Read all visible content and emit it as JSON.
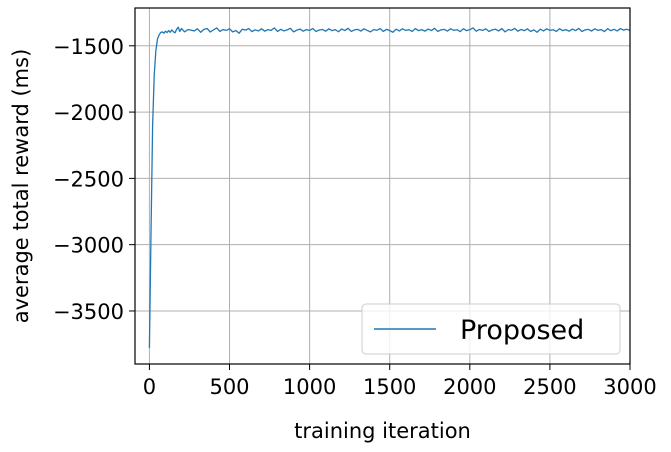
{
  "chart_data": {
    "type": "line",
    "xlabel": "training iteration",
    "ylabel": "average total reward (ms)",
    "xlim": [
      -90,
      3000
    ],
    "ylim": [
      -3900,
      -1215
    ],
    "xticks": [
      0,
      500,
      1000,
      1500,
      2000,
      2500,
      3000
    ],
    "yticks": [
      -3500,
      -3000,
      -2500,
      -2000,
      -1500
    ],
    "xtick_labels": [
      "0",
      "500",
      "1000",
      "1500",
      "2000",
      "2500",
      "3000"
    ],
    "ytick_labels": [
      "−3500",
      "−3000",
      "−2500",
      "−2000",
      "−1500"
    ],
    "grid": true,
    "legend_position": "lower right",
    "series": [
      {
        "name": "Proposed",
        "color": "#1f77b4",
        "points": [
          [
            0,
            -3780
          ],
          [
            10,
            -2900
          ],
          [
            20,
            -2100
          ],
          [
            30,
            -1720
          ],
          [
            40,
            -1540
          ],
          [
            50,
            -1450
          ],
          [
            60,
            -1420
          ],
          [
            70,
            -1400
          ],
          [
            80,
            -1395
          ],
          [
            90,
            -1405
          ],
          [
            100,
            -1390
          ],
          [
            110,
            -1400
          ],
          [
            120,
            -1385
          ],
          [
            130,
            -1398
          ],
          [
            140,
            -1380
          ],
          [
            150,
            -1395
          ],
          [
            160,
            -1402
          ],
          [
            170,
            -1375
          ],
          [
            180,
            -1360
          ],
          [
            190,
            -1392
          ],
          [
            200,
            -1370
          ],
          [
            220,
            -1395
          ],
          [
            240,
            -1378
          ],
          [
            260,
            -1382
          ],
          [
            280,
            -1388
          ],
          [
            300,
            -1372
          ],
          [
            320,
            -1398
          ],
          [
            340,
            -1376
          ],
          [
            360,
            -1370
          ],
          [
            380,
            -1396
          ],
          [
            400,
            -1380
          ],
          [
            420,
            -1365
          ],
          [
            440,
            -1392
          ],
          [
            460,
            -1378
          ],
          [
            480,
            -1384
          ],
          [
            500,
            -1372
          ],
          [
            520,
            -1395
          ],
          [
            540,
            -1385
          ],
          [
            560,
            -1405
          ],
          [
            580,
            -1375
          ],
          [
            600,
            -1382
          ],
          [
            620,
            -1370
          ],
          [
            640,
            -1393
          ],
          [
            660,
            -1380
          ],
          [
            680,
            -1388
          ],
          [
            700,
            -1372
          ],
          [
            720,
            -1390
          ],
          [
            740,
            -1378
          ],
          [
            760,
            -1384
          ],
          [
            780,
            -1365
          ],
          [
            800,
            -1392
          ],
          [
            820,
            -1376
          ],
          [
            840,
            -1388
          ],
          [
            860,
            -1380
          ],
          [
            880,
            -1368
          ],
          [
            900,
            -1395
          ],
          [
            920,
            -1382
          ],
          [
            940,
            -1374
          ],
          [
            960,
            -1390
          ],
          [
            980,
            -1378
          ],
          [
            1000,
            -1384
          ],
          [
            1020,
            -1370
          ],
          [
            1040,
            -1392
          ],
          [
            1060,
            -1381
          ],
          [
            1080,
            -1377
          ],
          [
            1100,
            -1390
          ],
          [
            1120,
            -1372
          ],
          [
            1140,
            -1386
          ],
          [
            1160,
            -1378
          ],
          [
            1180,
            -1394
          ],
          [
            1200,
            -1373
          ],
          [
            1220,
            -1385
          ],
          [
            1240,
            -1368
          ],
          [
            1260,
            -1392
          ],
          [
            1280,
            -1380
          ],
          [
            1300,
            -1376
          ],
          [
            1320,
            -1389
          ],
          [
            1340,
            -1372
          ],
          [
            1360,
            -1384
          ],
          [
            1380,
            -1395
          ],
          [
            1400,
            -1378
          ],
          [
            1420,
            -1383
          ],
          [
            1440,
            -1370
          ],
          [
            1460,
            -1392
          ],
          [
            1480,
            -1376
          ],
          [
            1500,
            -1385
          ],
          [
            1520,
            -1398
          ],
          [
            1540,
            -1375
          ],
          [
            1560,
            -1388
          ],
          [
            1580,
            -1372
          ],
          [
            1600,
            -1384
          ],
          [
            1620,
            -1379
          ],
          [
            1640,
            -1392
          ],
          [
            1660,
            -1370
          ],
          [
            1680,
            -1386
          ],
          [
            1700,
            -1378
          ],
          [
            1720,
            -1390
          ],
          [
            1740,
            -1374
          ],
          [
            1760,
            -1385
          ],
          [
            1780,
            -1368
          ],
          [
            1800,
            -1392
          ],
          [
            1820,
            -1380
          ],
          [
            1840,
            -1376
          ],
          [
            1860,
            -1389
          ],
          [
            1880,
            -1372
          ],
          [
            1900,
            -1384
          ],
          [
            1920,
            -1379
          ],
          [
            1940,
            -1393
          ],
          [
            1960,
            -1371
          ],
          [
            1980,
            -1386
          ],
          [
            2000,
            -1378
          ],
          [
            2020,
            -1365
          ],
          [
            2040,
            -1390
          ],
          [
            2060,
            -1377
          ],
          [
            2080,
            -1384
          ],
          [
            2100,
            -1372
          ],
          [
            2120,
            -1392
          ],
          [
            2140,
            -1380
          ],
          [
            2160,
            -1375
          ],
          [
            2180,
            -1388
          ],
          [
            2200,
            -1370
          ],
          [
            2220,
            -1395
          ],
          [
            2240,
            -1378
          ],
          [
            2260,
            -1383
          ],
          [
            2280,
            -1369
          ],
          [
            2300,
            -1390
          ],
          [
            2320,
            -1377
          ],
          [
            2340,
            -1386
          ],
          [
            2360,
            -1372
          ],
          [
            2380,
            -1392
          ],
          [
            2400,
            -1380
          ],
          [
            2420,
            -1398
          ],
          [
            2440,
            -1375
          ],
          [
            2460,
            -1388
          ],
          [
            2480,
            -1372
          ],
          [
            2500,
            -1384
          ],
          [
            2520,
            -1379
          ],
          [
            2540,
            -1392
          ],
          [
            2560,
            -1371
          ],
          [
            2580,
            -1386
          ],
          [
            2600,
            -1378
          ],
          [
            2620,
            -1390
          ],
          [
            2640,
            -1374
          ],
          [
            2660,
            -1385
          ],
          [
            2680,
            -1369
          ],
          [
            2700,
            -1392
          ],
          [
            2720,
            -1380
          ],
          [
            2740,
            -1376
          ],
          [
            2760,
            -1389
          ],
          [
            2780,
            -1372
          ],
          [
            2800,
            -1384
          ],
          [
            2820,
            -1378
          ],
          [
            2840,
            -1393
          ],
          [
            2860,
            -1371
          ],
          [
            2880,
            -1386
          ],
          [
            2900,
            -1376
          ],
          [
            2920,
            -1388
          ],
          [
            2940,
            -1370
          ],
          [
            2960,
            -1382
          ],
          [
            2980,
            -1375
          ],
          [
            3000,
            -1385
          ]
        ]
      }
    ]
  }
}
